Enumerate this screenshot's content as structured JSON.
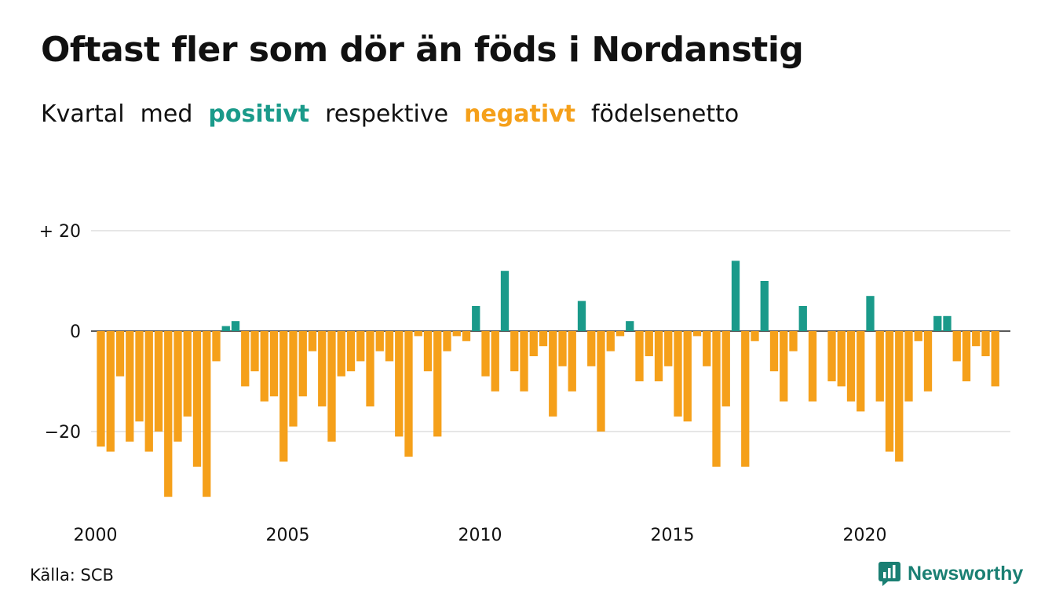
{
  "header": {
    "title": "Oftast fler som dör än föds i Nordanstig",
    "subtitle": {
      "w1": "Kvartal",
      "w2": "med",
      "positive": "positivt",
      "w3": "respektive",
      "negative": "negativt",
      "w4": "födelsenetto"
    }
  },
  "footer": {
    "source": "Källa: SCB",
    "brand": "Newsworthy",
    "brand_icon": "newsworthy-logo-icon"
  },
  "colors": {
    "positive": "#1a9a8a",
    "negative": "#f5a01a",
    "grid": "#dddddd",
    "brand": "#1a7f73"
  },
  "chart_data": {
    "type": "bar",
    "x_start": "2000 Q1",
    "x_tick_labels": [
      "2000",
      "2005",
      "2010",
      "2015",
      "2020"
    ],
    "y_tick_labels": [
      "+ 20",
      "0",
      "−20"
    ],
    "y_ticks": [
      20,
      0,
      -20
    ],
    "ylim": [
      -35,
      20
    ],
    "grid": true,
    "legend": "in subtitle",
    "values": [
      -23,
      -24,
      -9,
      -22,
      -18,
      -24,
      -20,
      -33,
      -22,
      -17,
      -27,
      -33,
      -6,
      1,
      2,
      -11,
      -8,
      -14,
      -13,
      -26,
      -19,
      -13,
      -4,
      -15,
      -22,
      -9,
      -8,
      -6,
      -15,
      -4,
      -6,
      -21,
      -25,
      -1,
      -8,
      -21,
      -4,
      -1,
      -2,
      5,
      -9,
      -12,
      12,
      -8,
      -12,
      -5,
      -3,
      -17,
      -7,
      -12,
      6,
      -7,
      -20,
      -4,
      -1,
      2,
      -10,
      -5,
      -10,
      -7,
      -17,
      -18,
      -1,
      -7,
      -27,
      -15,
      14,
      -27,
      -2,
      10,
      -8,
      -14,
      -4,
      5,
      -14,
      0,
      -10,
      -11,
      -14,
      -16,
      7,
      -14,
      -24,
      -26,
      -14,
      -2,
      -12,
      3,
      3,
      -6,
      -10,
      -3,
      -5,
      -11
    ]
  }
}
